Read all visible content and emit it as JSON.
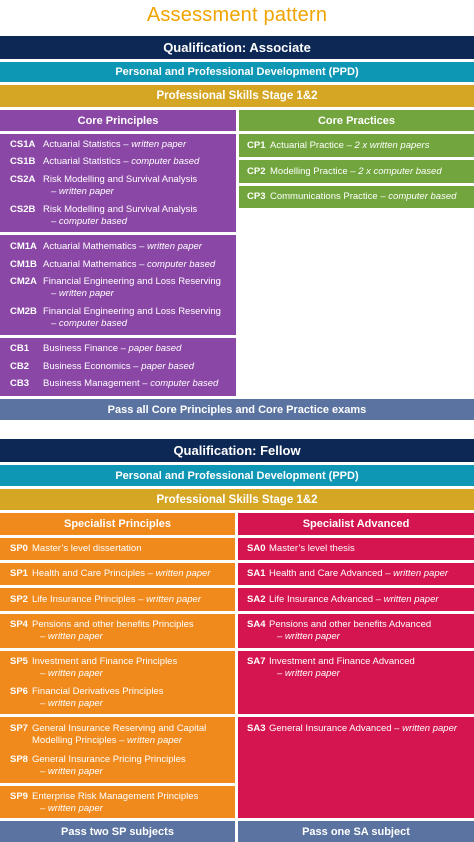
{
  "title": "Assessment pattern",
  "associate": {
    "qualification": "Qualification: Associate",
    "ppd": "Personal and Professional Development (PPD)",
    "pss": "Professional Skills Stage 1&2",
    "core_principles_header": "Core Principles",
    "core_practices_header": "Core Practices",
    "cs": [
      {
        "code": "CS1A",
        "name": "Actuarial Statistics",
        "mode": "– written paper"
      },
      {
        "code": "CS1B",
        "name": "Actuarial Statistics",
        "mode": "– computer based"
      },
      {
        "code": "CS2A",
        "name": "Risk Modelling and Survival Analysis",
        "sub": "– written paper"
      },
      {
        "code": "CS2B",
        "name": "Risk Modelling and Survival Analysis",
        "sub": "– computer based"
      }
    ],
    "cm": [
      {
        "code": "CM1A",
        "name": "Actuarial Mathematics",
        "mode": "– written paper"
      },
      {
        "code": "CM1B",
        "name": "Actuarial Mathematics",
        "mode": "– computer based"
      },
      {
        "code": "CM2A",
        "name": "Financial Engineering and Loss Reserving",
        "sub": "– written paper"
      },
      {
        "code": "CM2B",
        "name": "Financial Engineering and Loss Reserving",
        "sub": "– computer based"
      }
    ],
    "cb": [
      {
        "code": "CB1",
        "name": "Business Finance",
        "mode": "– paper based"
      },
      {
        "code": "CB2",
        "name": "Business Economics",
        "mode": "– paper based"
      },
      {
        "code": "CB3",
        "name": "Business Management",
        "mode": "– computer based"
      }
    ],
    "cp": [
      {
        "code": "CP1",
        "name": "Actuarial Practice",
        "mode": "– 2 x written papers"
      },
      {
        "code": "CP2",
        "name": "Modelling Practice",
        "mode": "– 2 x computer based"
      },
      {
        "code": "CP3",
        "name": "Communications Practice",
        "mode": "– computer based"
      }
    ],
    "pass": "Pass all Core Principles and Core Practice exams"
  },
  "fellow": {
    "qualification": "Qualification: Fellow",
    "ppd": "Personal and Professional Development (PPD)",
    "pss": "Professional Skills Stage 1&2",
    "sp_header": "Specialist Principles",
    "sa_header": "Specialist Advanced",
    "sp": [
      {
        "code": "SP0",
        "name": "Master’s level dissertation",
        "mode": ""
      },
      {
        "code": "SP1",
        "name": "Health and Care Principles",
        "mode": "– written paper"
      },
      {
        "code": "SP2",
        "name": "Life Insurance Principles",
        "mode": "– written paper"
      },
      {
        "code": "SP4",
        "name": "Pensions and other benefits Principles",
        "sub": "– written paper"
      },
      {
        "code": "SP5",
        "name": "Investment and Finance Principles",
        "sub": "– written paper"
      },
      {
        "code": "SP6",
        "name": "Financial Derivatives Principles",
        "sub": "– written paper"
      },
      {
        "code": "SP7",
        "name": "General Insurance Reserving and Capital",
        "name2": "Modelling Principles",
        "mode2": "– written paper"
      },
      {
        "code": "SP8",
        "name": "General Insurance Pricing Principles",
        "sub": "– written paper"
      },
      {
        "code": "SP9",
        "name": "Enterprise Risk Management Principles",
        "sub": "– written paper"
      }
    ],
    "sa": [
      {
        "code": "SA0",
        "name": "Master’s level thesis",
        "mode": ""
      },
      {
        "code": "SA1",
        "name": "Health and Care Advanced",
        "mode": "– written paper"
      },
      {
        "code": "SA2",
        "name": "Life Insurance Advanced",
        "mode": "– written paper"
      },
      {
        "code": "SA4",
        "name": "Pensions and other benefits Advanced",
        "sub": "– written paper"
      },
      {
        "code": "SA7",
        "name": "Investment and Finance Advanced",
        "sub": "– written paper"
      },
      {
        "code": "SA3",
        "name": "General Insurance Advanced",
        "mode": "– written paper"
      }
    ],
    "pass_sp": "Pass two SP subjects",
    "pass_sa": "Pass one SA subject"
  },
  "colors": {
    "title": "#f0a400",
    "navy": "#0d2855",
    "teal": "#0e96b5",
    "gold": "#d5a623",
    "purple": "#8a47a6",
    "green": "#72a53d",
    "slate": "#5a73a0",
    "orange": "#f08a1d",
    "crimson": "#d4154f"
  }
}
